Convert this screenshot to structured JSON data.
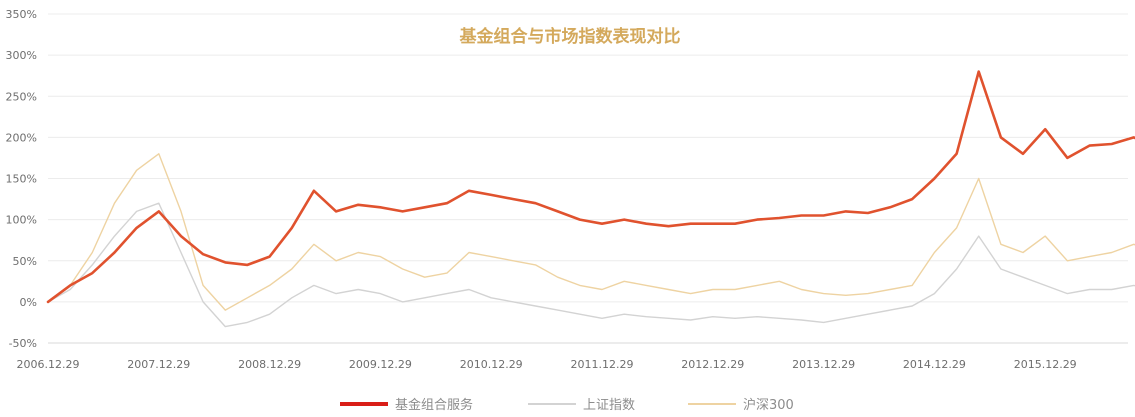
{
  "chart_data": {
    "type": "line",
    "title": "基金组合与市场指数表现对比",
    "xlabel": "",
    "ylabel": "",
    "grid": true,
    "legend_position": "bottom",
    "ylim": [
      -50,
      350
    ],
    "y_ticks": [
      "-50%",
      "0%",
      "50%",
      "100%",
      "150%",
      "200%",
      "250%",
      "300%",
      "350%"
    ],
    "x_ticks": [
      "2006.12.29",
      "2007.12.29",
      "2008.12.29",
      "2009.12.29",
      "2010.12.29",
      "2011.12.29",
      "2012.12.29",
      "2013.12.29",
      "2014.12.29",
      "2015.12.29"
    ],
    "x": [
      0,
      0.2,
      0.4,
      0.6,
      0.8,
      1.0,
      1.2,
      1.4,
      1.6,
      1.8,
      2.0,
      2.2,
      2.4,
      2.6,
      2.8,
      3.0,
      3.2,
      3.4,
      3.6,
      3.8,
      4.0,
      4.2,
      4.4,
      4.6,
      4.8,
      5.0,
      5.2,
      5.4,
      5.6,
      5.8,
      6.0,
      6.2,
      6.4,
      6.6,
      6.8,
      7.0,
      7.2,
      7.4,
      7.6,
      7.8,
      8.0,
      8.2,
      8.4,
      8.6,
      8.8,
      9.0,
      9.2,
      9.4,
      9.6,
      9.8,
      9.95
    ],
    "series": [
      {
        "name": "基金组合服务",
        "color": "#e0522e",
        "values": [
          0,
          20,
          35,
          60,
          90,
          110,
          80,
          58,
          48,
          45,
          55,
          90,
          135,
          110,
          118,
          115,
          110,
          115,
          120,
          135,
          130,
          125,
          120,
          110,
          100,
          95,
          100,
          95,
          92,
          95,
          95,
          95,
          100,
          102,
          105,
          105,
          110,
          108,
          115,
          125,
          150,
          180,
          280,
          200,
          180,
          210,
          175,
          190,
          192,
          200,
          190
        ]
      },
      {
        "name": "上证指数",
        "color": "#d3d3d3",
        "values": [
          0,
          15,
          45,
          80,
          110,
          120,
          60,
          0,
          -30,
          -25,
          -15,
          5,
          20,
          10,
          15,
          10,
          0,
          5,
          10,
          15,
          5,
          0,
          -5,
          -10,
          -15,
          -20,
          -15,
          -18,
          -20,
          -22,
          -18,
          -20,
          -18,
          -20,
          -22,
          -25,
          -20,
          -15,
          -10,
          -5,
          10,
          40,
          80,
          40,
          30,
          20,
          10,
          15,
          15,
          20,
          15
        ]
      },
      {
        "name": "沪深300",
        "color": "#eed3a2",
        "values": [
          0,
          20,
          60,
          120,
          160,
          180,
          110,
          20,
          -10,
          5,
          20,
          40,
          70,
          50,
          60,
          55,
          40,
          30,
          35,
          60,
          55,
          50,
          45,
          30,
          20,
          15,
          25,
          20,
          15,
          10,
          15,
          15,
          20,
          25,
          15,
          10,
          8,
          10,
          15,
          20,
          60,
          90,
          150,
          70,
          60,
          80,
          50,
          55,
          60,
          70,
          62
        ]
      }
    ]
  }
}
